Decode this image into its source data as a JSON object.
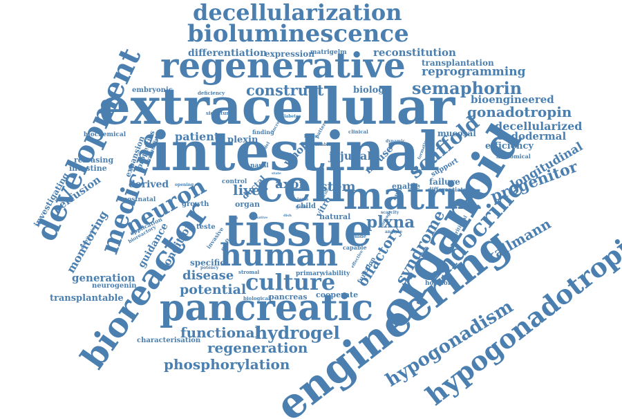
{
  "color": "#4a7fb0",
  "words": [
    "decellularization",
    "bioluminescence",
    "regenerative",
    "extracellular",
    "intestinal",
    "development",
    "medicine",
    "bioreactor",
    "engineering",
    "organoid",
    "hypogonadotropic",
    "cell",
    "matrix",
    "tissue",
    "human",
    "pancreatic",
    "culture",
    "neuron",
    "hypogonadism",
    "endocrine",
    "scaffold",
    "semaphorin",
    "progenitor",
    "construct",
    "reprogramming",
    "reconstitution",
    "transplantation",
    "differentiation",
    "expression",
    "matrigelm",
    "gonadotropin",
    "bioengineered",
    "decellularized",
    "endodermal",
    "longitudinal",
    "efficiency",
    "anatomical",
    "kallmann",
    "olfactory",
    "syndrome",
    "plxna",
    "liver",
    "axon",
    "stem",
    "hydrogel",
    "functional",
    "regeneration",
    "phosphorylation",
    "characterisation",
    "disease",
    "potential",
    "generation",
    "transplantable",
    "neurogenin",
    "monitoring",
    "perfusion",
    "investigating",
    "intestine",
    "releasing",
    "biochemical",
    "embryonic",
    "deficiency",
    "signature",
    "patient",
    "plexin",
    "whole",
    "jejunal",
    "mouse",
    "mucosal",
    "clinical",
    "dynamic",
    "derived",
    "guidance",
    "condition",
    "growth",
    "control",
    "ductal",
    "organ",
    "vitro",
    "child",
    "natural",
    "failure",
    "differentiate",
    "enable",
    "support",
    "biology",
    "specific",
    "potency",
    "stromal",
    "primary",
    "viability",
    "biological",
    "pancreas",
    "cooperate",
    "capable",
    "function",
    "hormone",
    "nutritional",
    "expansion",
    "properties",
    "extensive",
    "finding",
    "increase",
    "diabetes",
    "model",
    "hypes",
    "pattern",
    "suitable",
    "nasal",
    "form",
    "bulb",
    "teste",
    "invasive",
    "graft",
    "application",
    "bioreactory",
    "distribution",
    "postnatal",
    "opening",
    "scarcity",
    "guide",
    "analyse",
    "term",
    "gene",
    "formation",
    "lineage",
    "native",
    "facilitate",
    "level",
    "state",
    "dish",
    "effective",
    "single"
  ]
}
